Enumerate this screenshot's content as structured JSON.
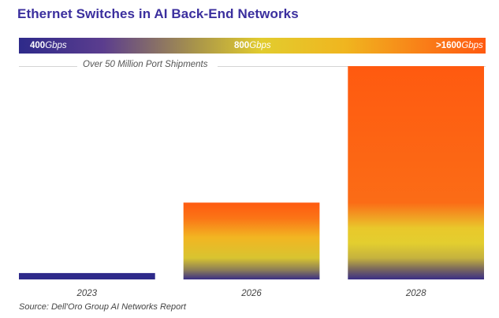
{
  "chart_data": {
    "type": "bar",
    "title": "Ethernet Switches in AI Back-End Networks",
    "categories": [
      "2023",
      "2026",
      "2028"
    ],
    "values": [
      3,
      36,
      100
    ],
    "ylim": [
      0,
      100
    ],
    "xlabel": "",
    "ylabel": "",
    "grid": false,
    "annotation": "Over 50 Million Port Shipments",
    "speed_scale": [
      {
        "number": "400",
        "unit": "Gbps"
      },
      {
        "number": "800",
        "unit": "Gbps"
      },
      {
        "number": ">1600",
        "unit": "Gbps"
      }
    ],
    "source": "Source: Dell'Oro Group AI Networks Report"
  },
  "colors": {
    "title": "#3b2f9e",
    "speed_400": "#2e2a8a",
    "speed_800": "#e2cc2e",
    "speed_1600": "#ff5a10"
  }
}
